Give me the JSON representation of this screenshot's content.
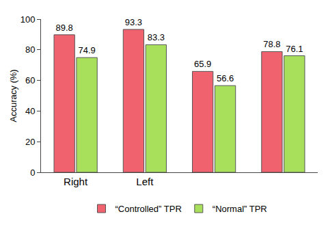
{
  "chart_data": {
    "type": "bar",
    "y_label": "Accuracy (%)",
    "categories": [
      "Right",
      "Left",
      null,
      null
    ],
    "series": [
      {
        "name": "“Controlled” TPR",
        "color": "#f0626e",
        "values": [
          89.8,
          93.3,
          65.9,
          78.8
        ]
      },
      {
        "name": "“Normal” TPR",
        "color": "#a8e05c",
        "values": [
          74.9,
          83.3,
          56.6,
          76.1
        ]
      }
    ],
    "ylim": [
      0,
      100
    ],
    "yticks": [
      0,
      20,
      40,
      60,
      80,
      100
    ],
    "grid": false,
    "data_labels": true,
    "legend": "bottom"
  }
}
